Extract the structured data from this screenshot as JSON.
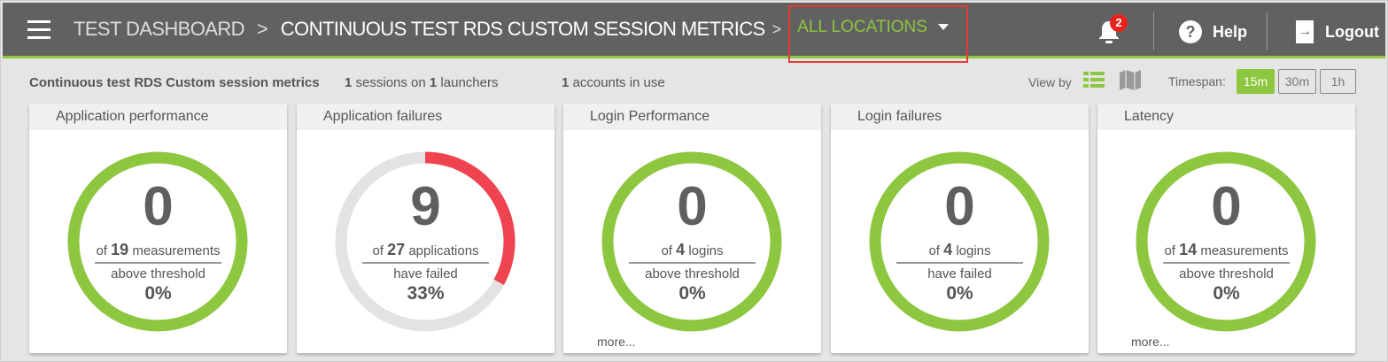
{
  "header": {
    "breadcrumb": [
      "TEST DASHBOARD",
      "CONTINUOUS TEST RDS CUSTOM SESSION METRICS"
    ],
    "separator": ">",
    "location": "ALL LOCATIONS",
    "notifications": "2",
    "help": "Help",
    "logout": "Logout"
  },
  "summary": {
    "title": "Continuous test RDS Custom session metrics",
    "sessions": "1",
    "sessions_label": "sessions on",
    "launchers": "1",
    "launchers_label": "launchers",
    "accounts": "1",
    "accounts_label": "accounts in use",
    "view_by": "View by",
    "timespan": "Timespan:",
    "timespans": [
      "15m",
      "30m",
      "1h"
    ],
    "active_timespan": "15m"
  },
  "colors": {
    "accent": "#8dc63f",
    "fail": "#ef4350",
    "track": "#e3e3e3",
    "header": "#616161"
  },
  "cards": [
    {
      "title": "Application performance",
      "value": "0",
      "of": "19",
      "unit": "measurements",
      "label": "above threshold",
      "percent": "0%",
      "fraction": 0,
      "color": "#8dc63f"
    },
    {
      "title": "Application failures",
      "value": "9",
      "of": "27",
      "unit": "applications",
      "label": "have failed",
      "percent": "33%",
      "fraction": 0.33,
      "color": "#ef4350"
    },
    {
      "title": "Login Performance",
      "value": "0",
      "of": "4",
      "unit": "logins",
      "label": "above threshold",
      "percent": "0%",
      "fraction": 0,
      "color": "#8dc63f",
      "more": "more..."
    },
    {
      "title": "Login failures",
      "value": "0",
      "of": "4",
      "unit": "logins",
      "label": "have failed",
      "percent": "0%",
      "fraction": 0,
      "color": "#8dc63f"
    },
    {
      "title": "Latency",
      "value": "0",
      "of": "14",
      "unit": "measurements",
      "label": "above threshold",
      "percent": "0%",
      "fraction": 0,
      "color": "#8dc63f",
      "more": "more..."
    }
  ]
}
